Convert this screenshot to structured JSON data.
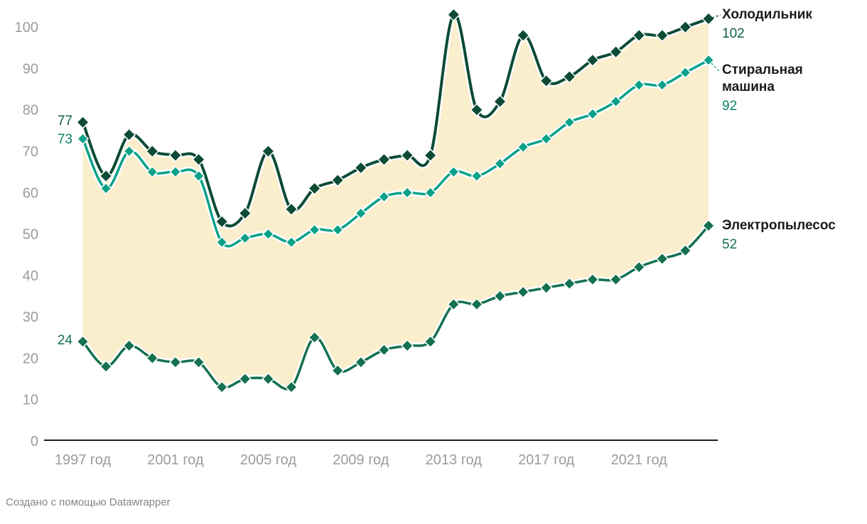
{
  "chart_data": {
    "type": "line",
    "marker": "diamond",
    "x": [
      1997,
      1998,
      1999,
      2000,
      2001,
      2002,
      2003,
      2004,
      2005,
      2006,
      2007,
      2008,
      2009,
      2010,
      2011,
      2012,
      2013,
      2014,
      2015,
      2016,
      2017,
      2018,
      2019,
      2020,
      2021,
      2022,
      2023,
      2024
    ],
    "series": [
      {
        "id": "refrigerator",
        "name": "Холодильник",
        "values": [
          77,
          64,
          74,
          70,
          69,
          68,
          53,
          55,
          70,
          56,
          61,
          63,
          66,
          68,
          69,
          69,
          103,
          80,
          82,
          98,
          87,
          88,
          92,
          94,
          98,
          98,
          100,
          102
        ],
        "color": "#0d4b35",
        "value_color": "#0d5f41",
        "start_label": "77",
        "end_label": "102"
      },
      {
        "id": "washing-machine",
        "name": "Стиральная машина",
        "values": [
          73,
          61,
          70,
          65,
          65,
          64,
          48,
          49,
          50,
          48,
          51,
          51,
          55,
          59,
          60,
          60,
          65,
          64,
          67,
          71,
          73,
          77,
          79,
          82,
          86,
          86,
          89,
          92
        ],
        "color": "#0ba188",
        "value_color": "#0c8468",
        "start_label": "73",
        "end_label": "92"
      },
      {
        "id": "vacuum-cleaner",
        "name": "Электропылесос",
        "values": [
          24,
          18,
          23,
          20,
          19,
          19,
          13,
          15,
          15,
          13,
          25,
          17,
          19,
          22,
          23,
          24,
          33,
          33,
          35,
          36,
          37,
          38,
          39,
          39,
          42,
          44,
          46,
          52
        ],
        "color": "#14714f",
        "value_color": "#13714f",
        "start_label": "24",
        "end_label": "52"
      }
    ],
    "fill_between_series": [
      "refrigerator",
      "vacuum-cleaner"
    ],
    "fill_color": "#fbeecd",
    "x_ticks": [
      {
        "value": 1997,
        "label": "1997 год"
      },
      {
        "value": 2001,
        "label": "2001 год"
      },
      {
        "value": 2005,
        "label": "2005 год"
      },
      {
        "value": 2009,
        "label": "2009 год"
      },
      {
        "value": 2013,
        "label": "2013 год"
      },
      {
        "value": 2017,
        "label": "2017 год"
      },
      {
        "value": 2021,
        "label": "2021 год"
      }
    ],
    "y_ticks": [
      {
        "value": 0,
        "label": "0"
      },
      {
        "value": 10,
        "label": "10"
      },
      {
        "value": 20,
        "label": "20"
      },
      {
        "value": 30,
        "label": "30"
      },
      {
        "value": 40,
        "label": "40"
      },
      {
        "value": 50,
        "label": "50"
      },
      {
        "value": 60,
        "label": "60"
      },
      {
        "value": 70,
        "label": "70"
      },
      {
        "value": 80,
        "label": "80"
      },
      {
        "value": 90,
        "label": "90"
      },
      {
        "value": 100,
        "label": "100"
      }
    ],
    "ylim": [
      0,
      110
    ],
    "grid": false,
    "legend_position": "right-of-line-ends",
    "axis_text_color": "#9b9b9b",
    "axis_line_color": "#1d1d1d"
  },
  "footer": {
    "credit": "Создано с помощью Datawrapper"
  }
}
